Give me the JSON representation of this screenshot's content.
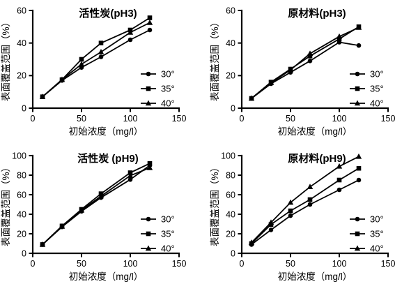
{
  "page": {
    "background": "#ffffff",
    "ink": "#000000"
  },
  "chart_data": [
    {
      "type": "line",
      "title": "活性炭(pH3)",
      "xlabel": "初始浓度（mg/l）",
      "ylabel": "表面覆盖范围（%）",
      "x": [
        10,
        30,
        50,
        70,
        100,
        120
      ],
      "xlim": [
        0,
        150
      ],
      "xticks": [
        0,
        50,
        100,
        150
      ],
      "ylim": [
        0,
        60
      ],
      "yticks": [
        0,
        20,
        40,
        60
      ],
      "grid": false,
      "legend_position": "inside-right",
      "series": [
        {
          "name": "30°",
          "marker": "circle",
          "values": [
            7,
            17,
            25,
            31.5,
            42,
            48
          ]
        },
        {
          "name": "35°",
          "marker": "square",
          "values": [
            7,
            17.5,
            30,
            40,
            48,
            55.5
          ]
        },
        {
          "name": "40°",
          "marker": "triangle",
          "values": [
            7,
            17.5,
            27,
            34.5,
            46.5,
            52.5
          ]
        }
      ]
    },
    {
      "type": "line",
      "title": "原材料(pH3)",
      "xlabel": "初始浓度（mg/l）",
      "ylabel": "表面覆盖范围（%）",
      "x": [
        10,
        30,
        50,
        70,
        100,
        120
      ],
      "xlim": [
        0,
        150
      ],
      "xticks": [
        0,
        50,
        100,
        150
      ],
      "ylim": [
        0,
        60
      ],
      "yticks": [
        0,
        20,
        40,
        60
      ],
      "grid": false,
      "legend_position": "inside-right",
      "series": [
        {
          "name": "30°",
          "marker": "circle",
          "values": [
            6,
            15,
            22,
            29,
            40.5,
            38.5
          ]
        },
        {
          "name": "35°",
          "marker": "square",
          "values": [
            6,
            16,
            24,
            32,
            42.5,
            50
          ]
        },
        {
          "name": "40°",
          "marker": "triangle",
          "values": [
            6,
            15.5,
            23.5,
            33.5,
            44,
            49.5
          ]
        }
      ]
    },
    {
      "type": "line",
      "title": "活性炭 (pH9)",
      "xlabel": "初始浓度（mg/l）",
      "ylabel": "表面覆盖范围（%）",
      "x": [
        10,
        30,
        50,
        70,
        100,
        120
      ],
      "xlim": [
        0,
        150
      ],
      "xticks": [
        0,
        50,
        100,
        150
      ],
      "ylim": [
        0,
        100
      ],
      "yticks": [
        0,
        20,
        40,
        60,
        80,
        100
      ],
      "grid": false,
      "legend_position": "inside-right",
      "series": [
        {
          "name": "30°",
          "marker": "circle",
          "values": [
            9,
            27,
            43,
            57,
            75.5,
            90
          ]
        },
        {
          "name": "35°",
          "marker": "square",
          "values": [
            9,
            28,
            45,
            61,
            82.5,
            92
          ]
        },
        {
          "name": "40°",
          "marker": "triangle",
          "values": [
            9,
            27.5,
            44,
            58.5,
            79.5,
            87.5
          ]
        }
      ]
    },
    {
      "type": "line",
      "title": "原材料(pH9)",
      "xlabel": "初始浓度（mg/l）",
      "ylabel": "表面覆盖范围（%）",
      "x": [
        10,
        30,
        50,
        70,
        100,
        120
      ],
      "xlim": [
        0,
        150
      ],
      "xticks": [
        0,
        50,
        100,
        150
      ],
      "ylim": [
        0,
        100
      ],
      "yticks": [
        0,
        20,
        40,
        60,
        80,
        100
      ],
      "grid": false,
      "legend_position": "inside-right",
      "series": [
        {
          "name": "30°",
          "marker": "circle",
          "values": [
            9,
            24,
            38.5,
            50,
            65,
            75
          ]
        },
        {
          "name": "35°",
          "marker": "square",
          "values": [
            10,
            29.5,
            43.5,
            55,
            75,
            87
          ]
        },
        {
          "name": "40°",
          "marker": "triangle",
          "values": [
            11,
            31.5,
            52,
            68,
            89,
            99
          ]
        }
      ]
    }
  ]
}
